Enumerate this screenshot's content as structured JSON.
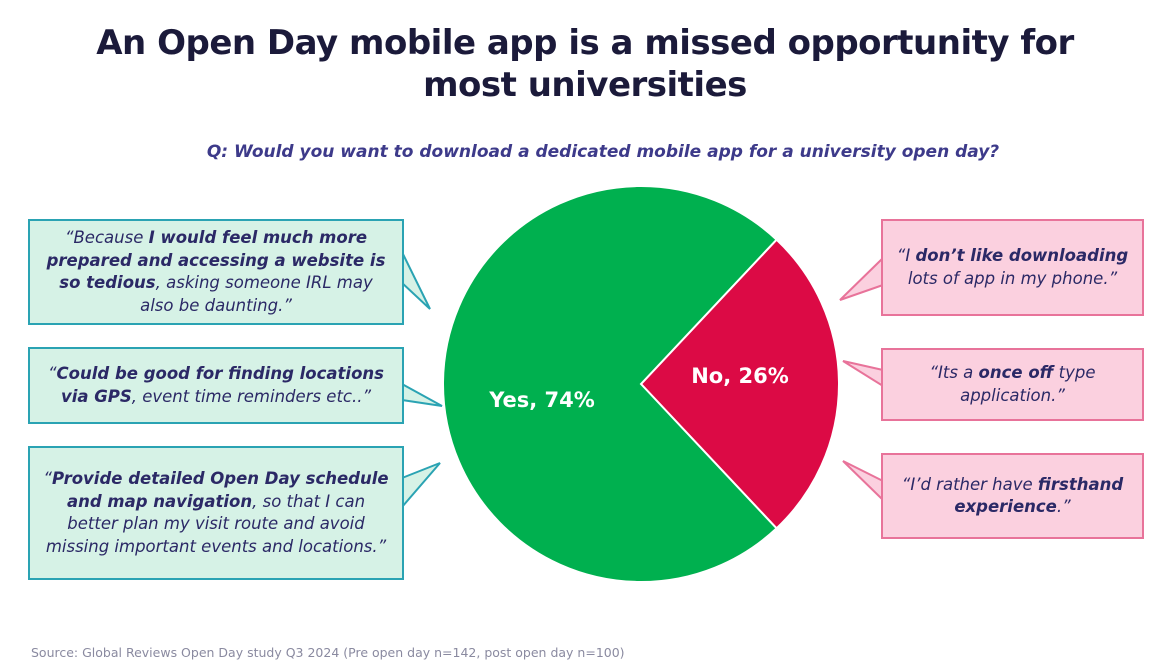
{
  "title_lines": [
    "An Open Day mobile app is a missed opportunity for",
    "most universities"
  ],
  "question": "Q: Would you want to download a dedicated mobile app for a university open day?",
  "chart_data": {
    "type": "pie",
    "slices": [
      {
        "label": "Yes, 74%",
        "name": "Yes",
        "value": 74,
        "color": "#00b04f"
      },
      {
        "label": "No, 26%",
        "name": "No",
        "value": 26,
        "color": "#dc0a45"
      }
    ]
  },
  "quotes_yes": [
    {
      "segments": [
        {
          "text": "“Because ",
          "bold": false
        },
        {
          "text": "I would feel much more prepared and accessing a website is so tedious",
          "bold": true
        },
        {
          "text": ", asking someone IRL may also be daunting.”",
          "bold": false
        }
      ]
    },
    {
      "segments": [
        {
          "text": "“",
          "bold": false
        },
        {
          "text": "Could be good for finding locations via GPS",
          "bold": true
        },
        {
          "text": ", event time reminders etc..”",
          "bold": false
        }
      ]
    },
    {
      "segments": [
        {
          "text": "“",
          "bold": false
        },
        {
          "text": "Provide detailed Open Day schedule and map navigation",
          "bold": true
        },
        {
          "text": ", so that I can better plan my visit route and avoid missing important events and locations.”",
          "bold": false
        }
      ]
    }
  ],
  "quotes_no": [
    {
      "segments": [
        {
          "text": "“I ",
          "bold": false
        },
        {
          "text": "don’t like downloading",
          "bold": true
        },
        {
          "text": " lots of app in my phone.”",
          "bold": false
        }
      ]
    },
    {
      "segments": [
        {
          "text": "“Its a ",
          "bold": false
        },
        {
          "text": "once off",
          "bold": true
        },
        {
          "text": " type application.”",
          "bold": false
        }
      ]
    },
    {
      "segments": [
        {
          "text": "“I’d rather have ",
          "bold": false
        },
        {
          "text": "firsthand experience",
          "bold": true
        },
        {
          "text": ".”",
          "bold": false
        }
      ]
    }
  ],
  "source": "Source: Global Reviews Open Day study Q3 2024 (Pre open day n=142, post open day n=100)"
}
